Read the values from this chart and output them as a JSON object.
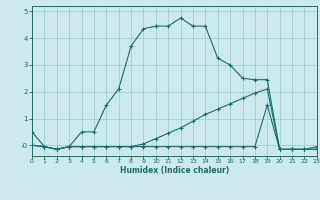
{
  "xlabel": "Humidex (Indice chaleur)",
  "bg_color": "#cce9eb",
  "grid_color": "#99cccc",
  "line_color": "#1a6e6e",
  "xlim": [
    0,
    23
  ],
  "ylim": [
    -0.4,
    5.2
  ],
  "xticks": [
    0,
    1,
    2,
    3,
    4,
    5,
    6,
    7,
    8,
    9,
    10,
    11,
    12,
    13,
    14,
    15,
    16,
    17,
    18,
    19,
    20,
    21,
    22,
    23
  ],
  "yticks": [
    0,
    1,
    2,
    3,
    4,
    5
  ],
  "ytick_labels": [
    "-0",
    "1",
    "2",
    "3",
    "4",
    "5"
  ],
  "s1_x": [
    0,
    1,
    2,
    3,
    4,
    5,
    6,
    7,
    8,
    9,
    10,
    11,
    12,
    13,
    14,
    15,
    16,
    17,
    18,
    19,
    20,
    21,
    22,
    23
  ],
  "s1_y": [
    0.5,
    -0.05,
    -0.15,
    -0.05,
    0.5,
    0.5,
    1.5,
    2.1,
    3.7,
    4.35,
    4.45,
    4.45,
    4.75,
    4.45,
    4.45,
    3.25,
    3.0,
    2.5,
    2.45,
    2.45,
    -0.15,
    -0.15,
    -0.15,
    -0.15
  ],
  "s2_x": [
    0,
    1,
    2,
    3,
    4,
    5,
    6,
    7,
    8,
    9,
    10,
    11,
    12,
    13,
    14,
    15,
    16,
    17,
    18,
    19,
    20,
    21,
    22,
    23
  ],
  "s2_y": [
    0.0,
    -0.05,
    -0.15,
    -0.05,
    -0.05,
    -0.05,
    -0.05,
    -0.05,
    -0.05,
    0.05,
    0.25,
    0.45,
    0.65,
    0.9,
    1.15,
    1.35,
    1.55,
    1.75,
    1.95,
    2.1,
    -0.15,
    -0.15,
    -0.15,
    -0.15
  ],
  "s3_x": [
    0,
    1,
    2,
    3,
    4,
    5,
    6,
    7,
    8,
    9,
    10,
    11,
    12,
    13,
    14,
    15,
    16,
    17,
    18,
    19,
    20,
    21,
    22,
    23
  ],
  "s3_y": [
    0.0,
    -0.05,
    -0.15,
    -0.05,
    -0.05,
    -0.05,
    -0.05,
    -0.05,
    -0.05,
    -0.05,
    -0.05,
    -0.05,
    -0.05,
    -0.05,
    -0.05,
    -0.05,
    -0.05,
    -0.05,
    -0.05,
    1.5,
    -0.15,
    -0.15,
    -0.15,
    -0.05
  ]
}
